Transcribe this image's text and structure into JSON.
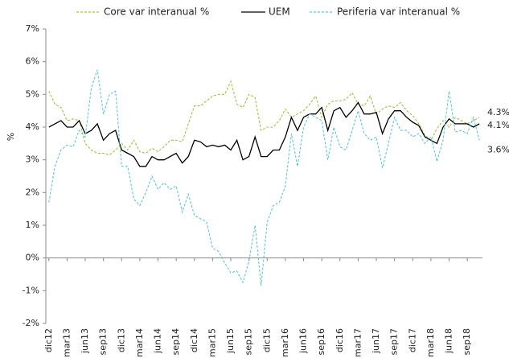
{
  "chart_data": {
    "type": "line",
    "y_label": "%",
    "categories": [
      "dic12",
      null,
      null,
      "mar13",
      null,
      null,
      "jun13",
      null,
      null,
      "sep13",
      null,
      null,
      "dic13",
      null,
      null,
      "mar14",
      null,
      null,
      "jun14",
      null,
      null,
      "sep14",
      null,
      null,
      "dic14",
      null,
      null,
      "mar15",
      null,
      null,
      "jun15",
      null,
      null,
      "sep15",
      null,
      null,
      "dic15",
      null,
      null,
      "mar16",
      null,
      null,
      "jun16",
      null,
      null,
      "sep16",
      null,
      null,
      "dic16",
      null,
      null,
      "mar17",
      null,
      null,
      "jun17",
      null,
      null,
      "sep17",
      null,
      null,
      "dic17",
      null,
      null,
      "mar18",
      null,
      null,
      "jun18",
      null,
      null,
      "sep18",
      null,
      null
    ],
    "ylim": [
      -2,
      7
    ],
    "yticks": [
      {
        "value": -2,
        "label": "-2%"
      },
      {
        "value": -1,
        "label": "-1%"
      },
      {
        "value": 0,
        "label": "0%"
      },
      {
        "value": 1,
        "label": "1%"
      },
      {
        "value": 2,
        "label": "2%"
      },
      {
        "value": 3,
        "label": "3%"
      },
      {
        "value": 4,
        "label": "4%"
      },
      {
        "value": 5,
        "label": "5%"
      },
      {
        "value": 6,
        "label": "6%"
      },
      {
        "value": 7,
        "label": "7%"
      }
    ],
    "grid": false,
    "legend": "top",
    "series": [
      {
        "name": "Core var interanual %",
        "color": "#9dc43a",
        "dashed": true,
        "end_label": "4.3%",
        "values": [
          5.1,
          4.7,
          4.6,
          4.2,
          4.25,
          4.2,
          3.5,
          3.3,
          3.2,
          3.2,
          3.15,
          3.3,
          3.5,
          3.3,
          3.6,
          3.25,
          3.2,
          3.35,
          3.25,
          3.4,
          3.6,
          3.6,
          3.55,
          4.1,
          4.65,
          4.65,
          4.8,
          4.95,
          5.0,
          5.0,
          5.4,
          4.7,
          4.6,
          5.0,
          4.9,
          3.9,
          4.0,
          4.0,
          4.2,
          4.55,
          4.3,
          4.4,
          4.5,
          4.7,
          4.95,
          4.3,
          4.7,
          4.8,
          4.8,
          4.85,
          5.05,
          4.7,
          4.65,
          4.95,
          4.4,
          4.55,
          4.65,
          4.6,
          4.75,
          4.5,
          4.35,
          4.1,
          3.75,
          3.6,
          3.95,
          4.2,
          4.0,
          4.3,
          4.2,
          4.1,
          4.2,
          4.3
        ]
      },
      {
        "name": "UEM",
        "color": "#000000",
        "dashed": false,
        "end_label": "4.1%",
        "values": [
          4.0,
          4.1,
          4.2,
          4.0,
          4.0,
          4.2,
          3.8,
          3.9,
          4.1,
          3.6,
          3.8,
          3.9,
          3.3,
          3.2,
          3.1,
          2.8,
          2.8,
          3.1,
          3.0,
          3.0,
          3.1,
          3.2,
          2.9,
          3.1,
          3.6,
          3.55,
          3.4,
          3.45,
          3.4,
          3.45,
          3.3,
          3.6,
          3.0,
          3.1,
          3.7,
          3.1,
          3.1,
          3.3,
          3.3,
          3.7,
          4.3,
          3.9,
          4.3,
          4.4,
          4.4,
          4.6,
          3.9,
          4.5,
          4.6,
          4.3,
          4.5,
          4.75,
          4.4,
          4.4,
          4.45,
          3.8,
          4.25,
          4.5,
          4.5,
          4.3,
          4.15,
          4.05,
          3.7,
          3.6,
          3.5,
          4.0,
          4.25,
          4.1,
          4.1,
          4.1,
          4.0,
          4.1
        ]
      },
      {
        "name": "Periferia var interanual %",
        "color": "#5cc6e0",
        "dashed": true,
        "end_label": "3.6%",
        "values": [
          1.7,
          2.8,
          3.3,
          3.45,
          3.4,
          3.9,
          3.7,
          5.2,
          5.75,
          4.4,
          5.0,
          5.1,
          2.8,
          2.8,
          1.8,
          1.6,
          2.0,
          2.5,
          2.1,
          2.3,
          2.1,
          2.2,
          1.4,
          1.95,
          1.3,
          1.2,
          1.1,
          0.3,
          0.2,
          -0.15,
          -0.45,
          -0.4,
          -0.75,
          -0.1,
          1.0,
          -0.85,
          1.1,
          1.6,
          1.7,
          2.2,
          3.8,
          2.8,
          4.0,
          4.4,
          4.3,
          4.2,
          3.0,
          4.0,
          3.4,
          3.3,
          3.9,
          4.5,
          3.8,
          3.6,
          3.7,
          2.75,
          3.5,
          4.3,
          3.9,
          3.9,
          3.7,
          3.8,
          3.5,
          3.7,
          2.95,
          3.6,
          5.1,
          3.85,
          3.9,
          3.8,
          4.3,
          3.6
        ]
      }
    ]
  }
}
